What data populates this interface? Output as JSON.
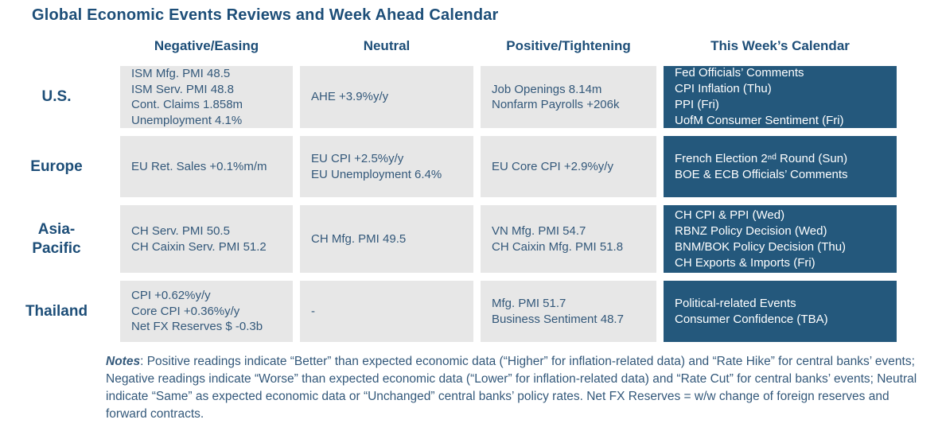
{
  "colors": {
    "navy": "#1d4e78",
    "slate": "#33587a",
    "grey": "#e7e7e7",
    "blue": "#24587c",
    "white": "#ffffff"
  },
  "title": "Global Economic Events Reviews and Week Ahead Calendar",
  "table": {
    "column_headers": [
      "Negative/Easing",
      "Neutral",
      "Positive/Tightening",
      "This Week’s Calendar"
    ],
    "rows": [
      {
        "label": [
          "U.S."
        ],
        "negative": [
          "ISM Mfg. PMI 48.5",
          "ISM Serv. PMI 48.8",
          "Cont. Claims 1.858m",
          "Unemployment 4.1%"
        ],
        "neutral": [
          "AHE +3.9%y/y"
        ],
        "positive": [
          "Job Openings 8.14m",
          "Nonfarm Payrolls +206k"
        ],
        "calendar": [
          "Fed Officials’ Comments",
          "CPI Inflation (Thu)",
          "PPI (Fri)",
          "UofM Consumer Sentiment (Fri)"
        ]
      },
      {
        "label": [
          "Europe"
        ],
        "negative": [
          "EU Ret. Sales +0.1%m/m"
        ],
        "neutral": [
          "EU CPI +2.5%y/y",
          "EU Unemployment 6.4%"
        ],
        "positive": [
          "EU Core CPI +2.9%y/y"
        ],
        "calendar": [
          "French Election 2ⁿᵈ Round (Sun)",
          "BOE & ECB Officials’ Comments"
        ]
      },
      {
        "label": [
          "Asia-",
          "Pacific"
        ],
        "negative": [
          "CH Serv. PMI 50.5",
          "CH Caixin Serv. PMI 51.2"
        ],
        "neutral": [
          "CH Mfg. PMI 49.5"
        ],
        "positive": [
          "VN Mfg. PMI 54.7",
          "CH Caixin Mfg. PMI 51.8"
        ],
        "calendar": [
          "CH CPI & PPI (Wed)",
          "RBNZ Policy Decision (Wed)",
          "BNM/BOK Policy Decision (Thu)",
          "CH Exports & Imports (Fri)"
        ]
      },
      {
        "label": [
          "Thailand"
        ],
        "negative": [
          "CPI +0.62%y/y",
          "Core CPI +0.36%y/y",
          "Net FX Reserves $ -0.3b"
        ],
        "neutral": [
          "-"
        ],
        "positive": [
          "Mfg. PMI 51.7",
          "Business Sentiment 48.7"
        ],
        "calendar": [
          "Political-related Events",
          "Consumer Confidence (TBA)"
        ]
      }
    ]
  },
  "notes": {
    "label": "Notes",
    "text": ": Positive readings indicate “Better” than expected economic data (“Higher” for inflation-related data) and “Rate Hike” for central banks’ events; Negative readings indicate “Worse” than expected economic data (“Lower” for inflation-related data) and “Rate Cut” for central banks’ events; Neutral indicate “Same” as expected economic data or “Unchanged” central banks’ policy rates. Net FX Reserves = w/w change of foreign reserves and forward contracts."
  }
}
